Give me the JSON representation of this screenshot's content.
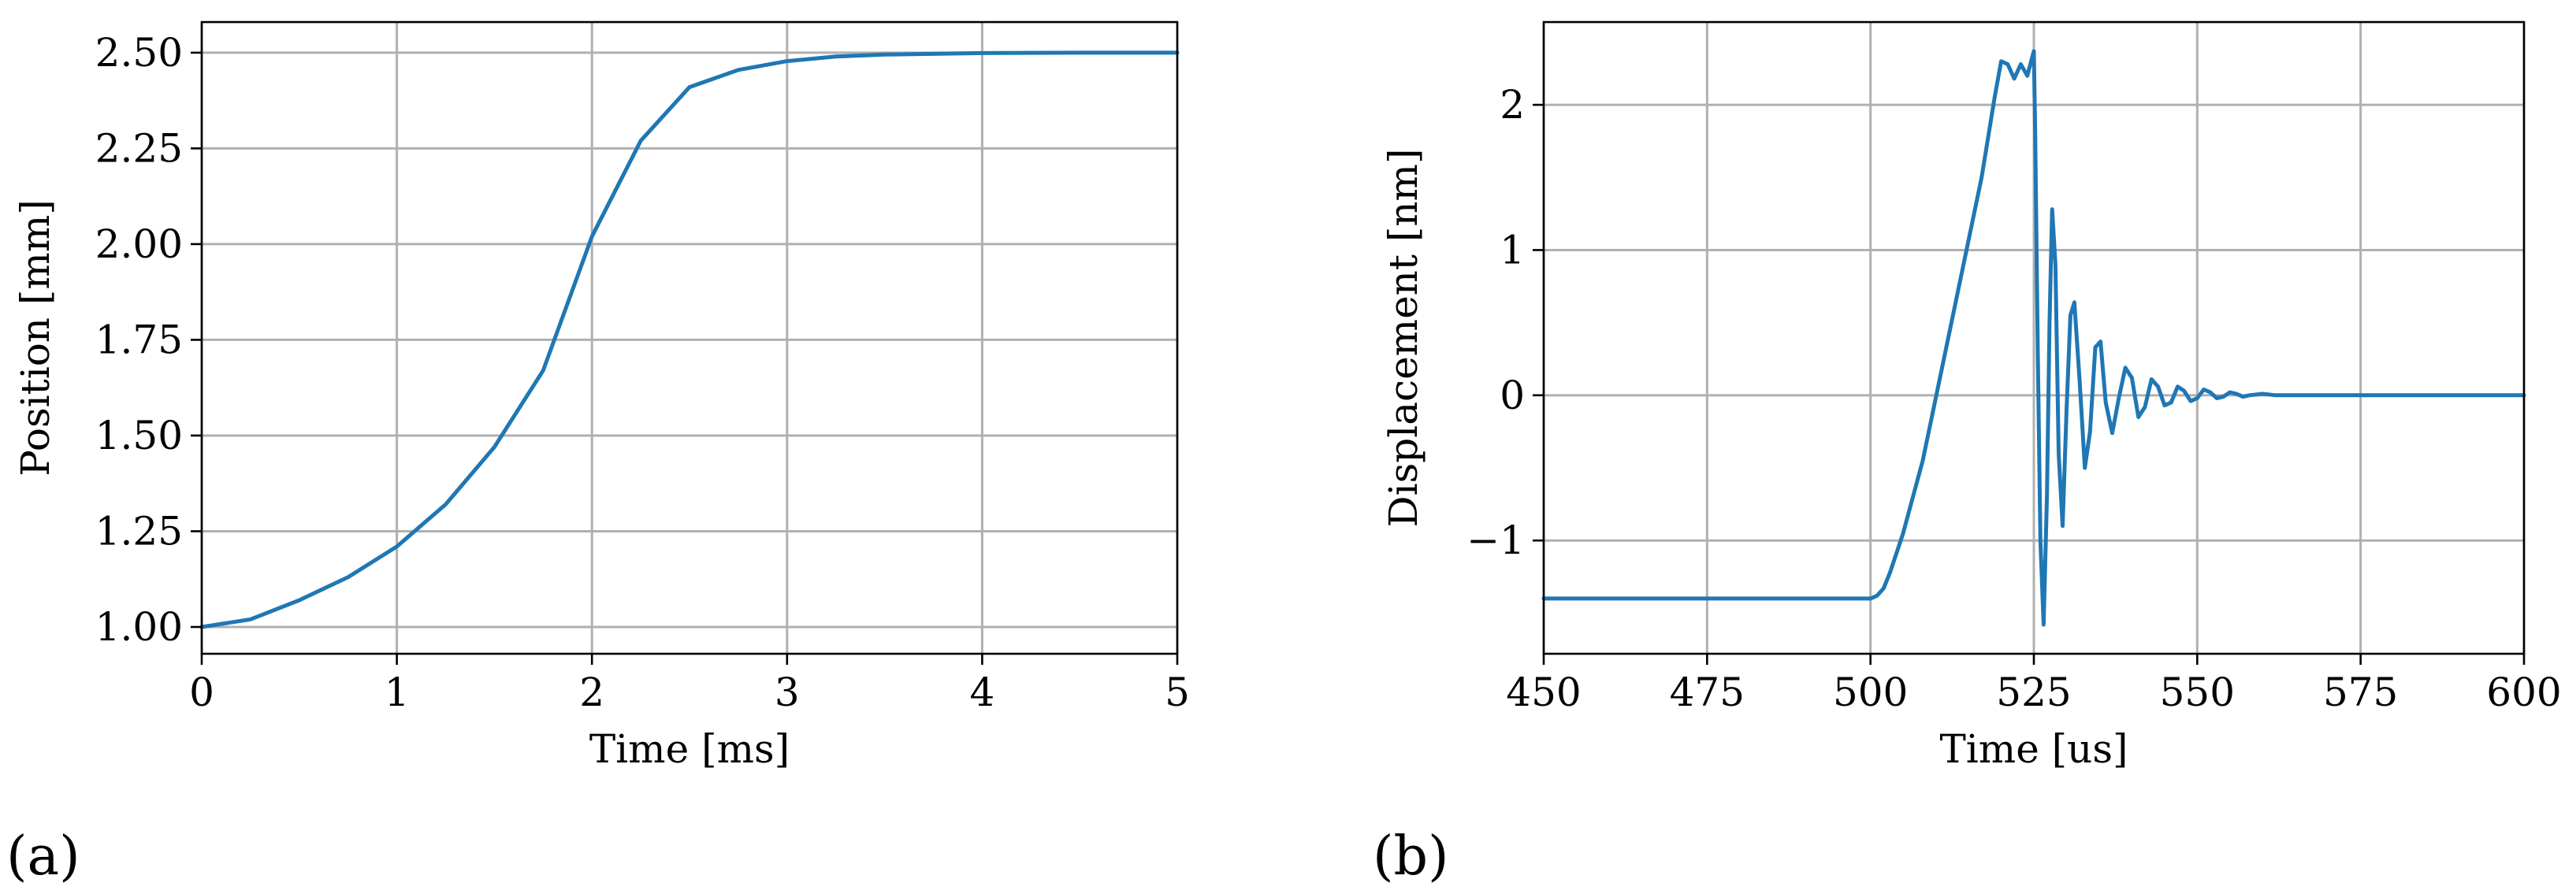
{
  "figure": {
    "panel_labels": [
      "(a)",
      "(b)"
    ]
  },
  "colors": {
    "series": "#1f77b4",
    "grid": "#b0b0b0",
    "axis": "#000000"
  },
  "chart_data": [
    {
      "type": "line",
      "panel": "(a)",
      "title": "",
      "xlabel": "Time [ms]",
      "ylabel": "Position [mm]",
      "xlim": [
        0,
        5
      ],
      "ylim": [
        0.93,
        2.58
      ],
      "xticks": [
        0,
        1,
        2,
        3,
        4,
        5
      ],
      "xtick_labels": [
        "0",
        "1",
        "2",
        "3",
        "4",
        "5"
      ],
      "yticks": [
        1.0,
        1.25,
        1.5,
        1.75,
        2.0,
        2.25,
        2.5
      ],
      "ytick_labels": [
        "1.00",
        "1.25",
        "1.50",
        "1.75",
        "2.00",
        "2.25",
        "2.50"
      ],
      "grid": true,
      "series": [
        {
          "x": [
            0,
            0.25,
            0.5,
            0.75,
            1.0,
            1.25,
            1.5,
            1.75,
            2.0,
            2.25,
            2.5,
            2.75,
            3.0,
            3.25,
            3.5,
            4.0,
            4.5,
            5.0
          ],
          "y": [
            1.0,
            1.02,
            1.07,
            1.13,
            1.21,
            1.32,
            1.47,
            1.67,
            2.02,
            2.27,
            2.41,
            2.455,
            2.478,
            2.49,
            2.495,
            2.499,
            2.5,
            2.5
          ]
        }
      ]
    },
    {
      "type": "line",
      "panel": "(b)",
      "title": "",
      "xlabel": "Time [us]",
      "ylabel": "Displacement [nm]",
      "xlim": [
        450,
        600
      ],
      "ylim": [
        -1.78,
        2.57
      ],
      "xticks": [
        450,
        475,
        500,
        525,
        550,
        575,
        600
      ],
      "xtick_labels": [
        "450",
        "475",
        "500",
        "525",
        "550",
        "575",
        "600"
      ],
      "yticks": [
        -1,
        0,
        1,
        2
      ],
      "ytick_labels": [
        "−1",
        "0",
        "1",
        "2"
      ],
      "grid": true,
      "series": [
        {
          "x": [
            450,
            500,
            501,
            502,
            503,
            505,
            508,
            511,
            514,
            517,
            519,
            520,
            521,
            522,
            523,
            524,
            525,
            525.2,
            525.6,
            526,
            526.5,
            527,
            527.4,
            527.8,
            528.3,
            528.8,
            529.4,
            530,
            530.6,
            531.2,
            532,
            532.8,
            533.6,
            534.4,
            535.2,
            536,
            537,
            538,
            539,
            540,
            541,
            542,
            543,
            544,
            545,
            546,
            547,
            548,
            549,
            550,
            551,
            552,
            553,
            554,
            555,
            556,
            557,
            558,
            560,
            562,
            564,
            566,
            568,
            570,
            575,
            600
          ],
          "y": [
            -1.4,
            -1.4,
            -1.38,
            -1.33,
            -1.22,
            -0.95,
            -0.45,
            0.2,
            0.85,
            1.5,
            2.05,
            2.3,
            2.28,
            2.18,
            2.28,
            2.2,
            2.37,
            1.8,
            0.3,
            -1.0,
            -1.58,
            -0.7,
            0.5,
            1.28,
            0.9,
            -0.4,
            -0.9,
            -0.1,
            0.55,
            0.64,
            0.1,
            -0.5,
            -0.25,
            0.33,
            0.37,
            -0.05,
            -0.26,
            -0.02,
            0.19,
            0.12,
            -0.15,
            -0.08,
            0.11,
            0.06,
            -0.07,
            -0.05,
            0.06,
            0.03,
            -0.04,
            -0.02,
            0.04,
            0.02,
            -0.02,
            -0.01,
            0.02,
            0.01,
            -0.01,
            0.0,
            0.01,
            0.0,
            0.0,
            0.0,
            0.0,
            0.0,
            0.0,
            0.0
          ]
        }
      ]
    }
  ]
}
